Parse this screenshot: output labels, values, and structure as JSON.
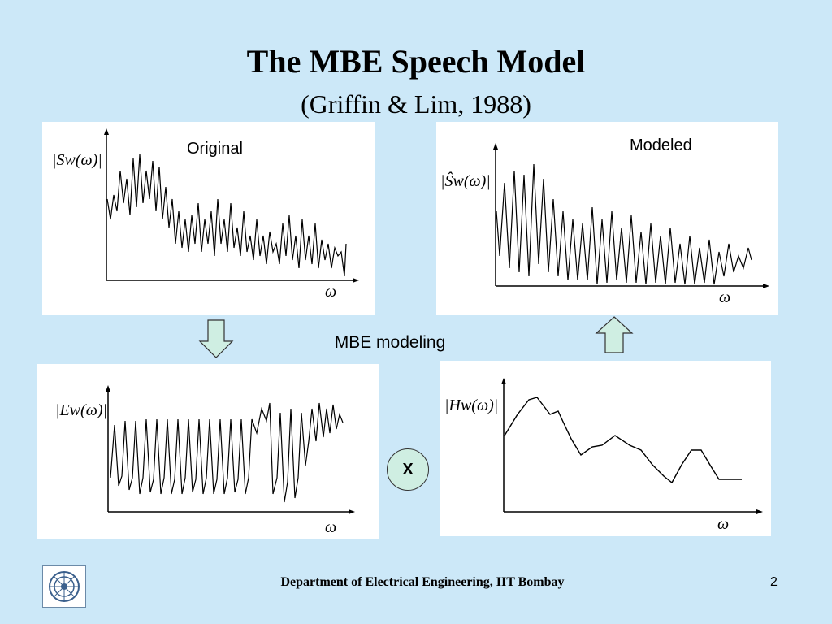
{
  "title": "The MBE Speech Model",
  "subtitle": "(Griffin & Lim, 1988)",
  "panels": {
    "original": {
      "label": "Original",
      "ylabel": "|Sw(ω)|",
      "xlabel": "ω"
    },
    "modeled": {
      "label": "Modeled",
      "ylabel": "|Ŝw(ω)|",
      "xlabel": "ω"
    },
    "excitation": {
      "ylabel": "|Ew(ω)|",
      "xlabel": "ω"
    },
    "envelope": {
      "ylabel": "|Hw(ω)|",
      "xlabel": "ω"
    }
  },
  "center_label": "MBE modeling",
  "operator": "X",
  "footer": "Department of Electrical Engineering, IIT Bombay",
  "page_number": "2",
  "colors": {
    "background": "#cce8f8",
    "arrow_fill": "#cfeee2",
    "panel": "#ffffff"
  }
}
